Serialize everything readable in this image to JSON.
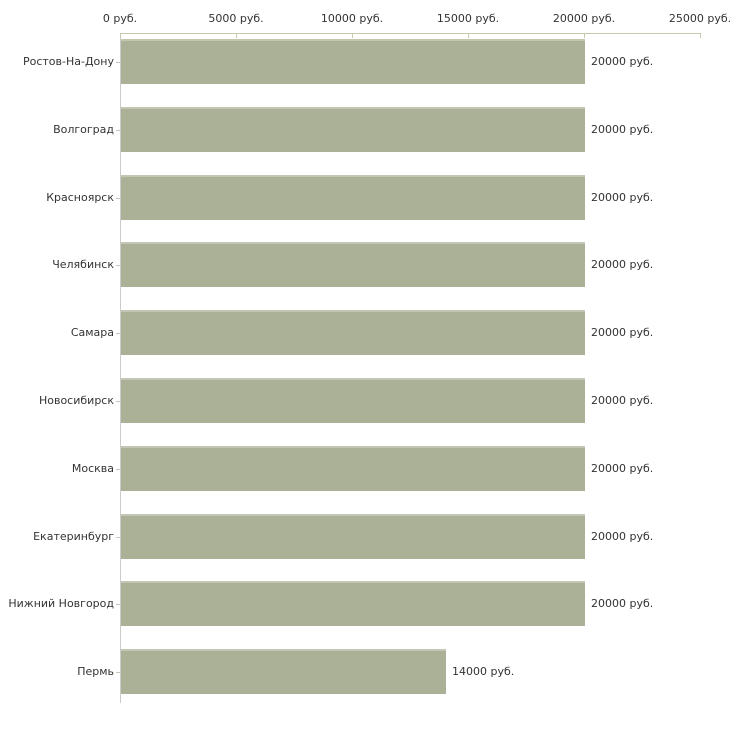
{
  "chart_data": {
    "type": "bar",
    "orientation": "horizontal",
    "title": "",
    "xlabel": "",
    "ylabel": "",
    "xlim": [
      0,
      25000
    ],
    "grid": false,
    "legend": "none",
    "unit": "руб.",
    "x_ticks": [
      {
        "value": 0,
        "label": "0 руб."
      },
      {
        "value": 5000,
        "label": "5000 руб."
      },
      {
        "value": 10000,
        "label": "10000 руб."
      },
      {
        "value": 15000,
        "label": "15000 руб."
      },
      {
        "value": 20000,
        "label": "20000 руб."
      },
      {
        "value": 25000,
        "label": "25000 руб."
      }
    ],
    "categories": [
      "Ростов-На-Дону",
      "Волгоград",
      "Красноярск",
      "Челябинск",
      "Самара",
      "Новосибирск",
      "Москва",
      "Екатеринбург",
      "Нижний Новгород",
      "Пермь"
    ],
    "values": [
      20000,
      20000,
      20000,
      20000,
      20000,
      20000,
      20000,
      20000,
      20000,
      14000
    ],
    "value_labels": [
      "20000 руб.",
      "20000 руб.",
      "20000 руб.",
      "20000 руб.",
      "20000 руб.",
      "20000 руб.",
      "20000 руб.",
      "20000 руб.",
      "20000 руб.",
      "14000 руб."
    ],
    "colors": {
      "bar_fill": "#abb196",
      "top_axis_line": "#c8c8ae",
      "left_axis_line": "#cbcbcb",
      "category_tick": "#c6c6b8",
      "text": "#333333",
      "background": "#ffffff"
    }
  }
}
